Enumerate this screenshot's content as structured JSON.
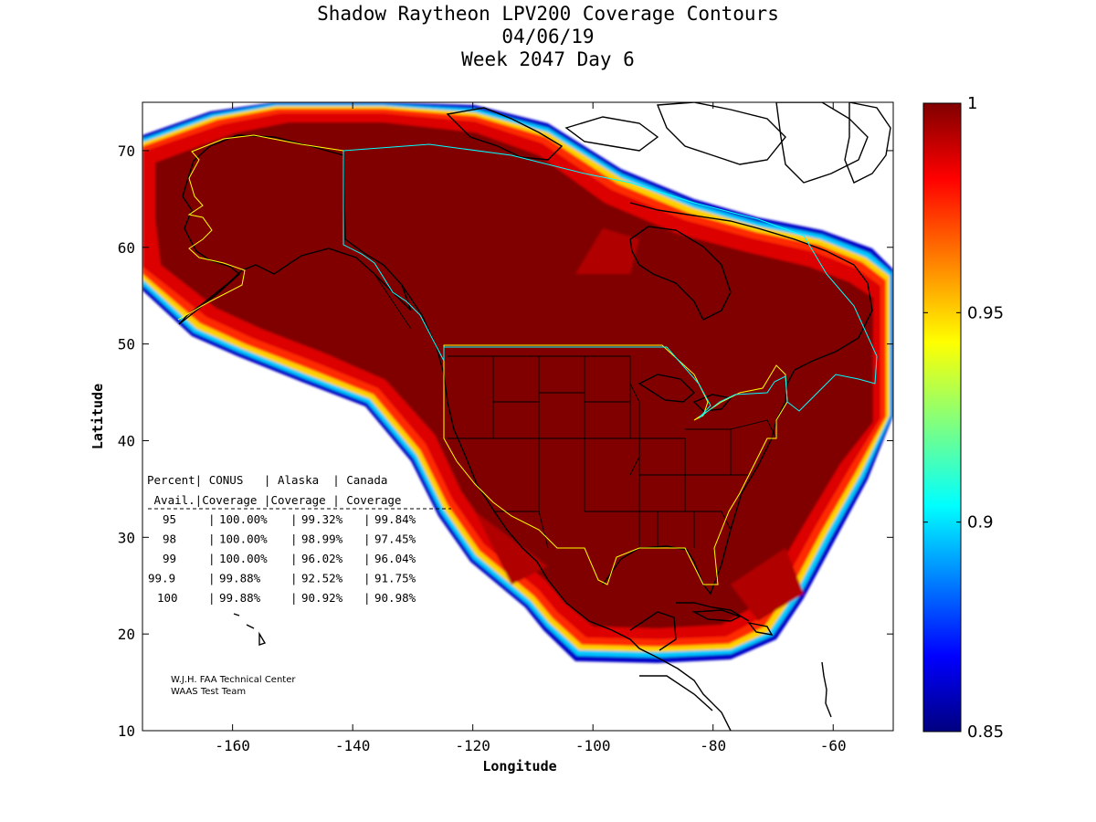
{
  "title": {
    "line1": "Shadow Raytheon LPV200 Coverage Contours",
    "line2": "04/06/19",
    "line3": "Week 2047 Day 6"
  },
  "axes": {
    "xlabel": "Longitude",
    "ylabel": "Latitude",
    "xlim": [
      -175,
      -50
    ],
    "ylim": [
      10,
      75
    ],
    "xticks": [
      -160,
      -140,
      -120,
      -100,
      -80,
      -60
    ],
    "yticks": [
      10,
      20,
      30,
      40,
      50,
      60,
      70
    ]
  },
  "colorbar": {
    "range": [
      0.85,
      1
    ],
    "ticks": [
      "1",
      "0.95",
      "0.9",
      "0.85"
    ],
    "tick_values": [
      1,
      0.95,
      0.9,
      0.85
    ]
  },
  "coverage_table": {
    "header1": "Percent| CONUS   | Alaska  | Canada",
    "header2": " Avail.|Coverage |Coverage | Coverage",
    "rows": [
      {
        "avail": "95",
        "conus": "100.00%",
        "alaska": "99.32%",
        "canada": "99.84%"
      },
      {
        "avail": "98",
        "conus": "100.00%",
        "alaska": "98.99%",
        "canada": "97.45%"
      },
      {
        "avail": "99",
        "conus": "100.00%",
        "alaska": "96.02%",
        "canada": "96.04%"
      },
      {
        "avail": "99.9",
        "conus": "99.88%",
        "alaska": "92.52%",
        "canada": "91.75%"
      },
      {
        "avail": "100",
        "conus": "99.88%",
        "alaska": "90.92%",
        "canada": "90.98%"
      }
    ]
  },
  "credit": {
    "line1": "W.J.H. FAA Technical Center",
    "line2": "WAAS Test Team"
  },
  "colors": {
    "core": "#800000",
    "background": "#ffffff",
    "conus_boundary": "#ffff00",
    "canada_boundary": "#00ffff"
  }
}
